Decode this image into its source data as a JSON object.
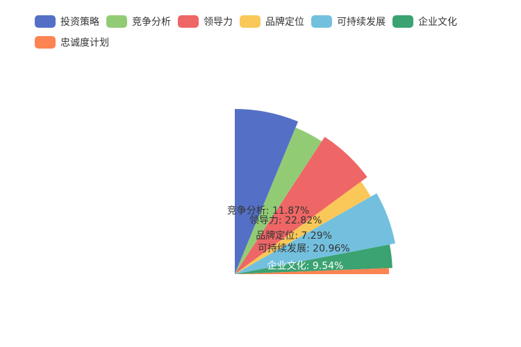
{
  "chart_data": {
    "type": "pie",
    "variant": "rose-radius",
    "start_angle_deg": 90,
    "sweep_deg": 90,
    "legend_position": "top-left",
    "categories": [
      "投资策略",
      "竞争分析",
      "领导力",
      "品牌定位",
      "可持续发展",
      "企业文化",
      "忠诚度计划"
    ],
    "values": [
      25.0,
      11.87,
      22.82,
      7.29,
      20.96,
      9.54,
      2.5
    ],
    "colors": [
      "#5470c6",
      "#91cc75",
      "#ee6666",
      "#fac858",
      "#73c0de",
      "#3ba272",
      "#fc8452"
    ],
    "labels": [
      "",
      "竞争分析: 11.87%",
      "领导力: 22.82%",
      "品牌定位: 7.29%",
      "可持续发展: 20.96%",
      "企业文化: 9.54%",
      ""
    ]
  }
}
